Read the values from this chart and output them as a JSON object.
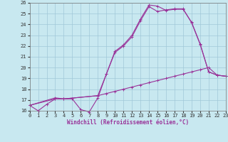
{
  "background_color": "#c8e8f0",
  "grid_color": "#a0c8d8",
  "line_color": "#993399",
  "xlabel": "Windchill (Refroidissement éolien,°C)",
  "xlim": [
    0,
    23
  ],
  "ylim": [
    16,
    26
  ],
  "yticks": [
    16,
    17,
    18,
    19,
    20,
    21,
    22,
    23,
    24,
    25,
    26
  ],
  "xticks": [
    0,
    1,
    2,
    3,
    4,
    5,
    6,
    7,
    8,
    9,
    10,
    11,
    12,
    13,
    14,
    15,
    16,
    17,
    18,
    19,
    20,
    21,
    22,
    23
  ],
  "line1_x": [
    0,
    1,
    2,
    3,
    4,
    5,
    6,
    7,
    8,
    9,
    10,
    11,
    12,
    13,
    14,
    15,
    16,
    17,
    18,
    19,
    20,
    21,
    22,
    23
  ],
  "line1_y": [
    16.5,
    16.0,
    16.6,
    17.1,
    17.1,
    17.1,
    16.1,
    15.9,
    17.2,
    19.4,
    21.5,
    22.1,
    23.0,
    24.5,
    25.8,
    25.7,
    25.3,
    25.4,
    25.4,
    24.2,
    22.2,
    19.6,
    19.3,
    19.2
  ],
  "line2_x": [
    0,
    3,
    4,
    8,
    9,
    10,
    11,
    12,
    13,
    14,
    15,
    16,
    17,
    18,
    19,
    20,
    21,
    22,
    23
  ],
  "line2_y": [
    16.5,
    17.2,
    17.1,
    17.4,
    19.4,
    21.4,
    22.0,
    22.85,
    24.35,
    25.65,
    25.2,
    25.35,
    25.45,
    25.45,
    24.15,
    22.15,
    19.6,
    19.3,
    19.2
  ],
  "line3_x": [
    0,
    3,
    4,
    8,
    9,
    10,
    11,
    12,
    13,
    14,
    15,
    16,
    17,
    18,
    19,
    20,
    21,
    22,
    23
  ],
  "line3_y": [
    16.5,
    17.1,
    17.1,
    17.4,
    17.6,
    17.8,
    18.0,
    18.2,
    18.4,
    18.6,
    18.8,
    19.0,
    19.2,
    19.4,
    19.6,
    19.8,
    20.0,
    19.3,
    19.2
  ],
  "markersize": 3,
  "linewidth": 0.8
}
